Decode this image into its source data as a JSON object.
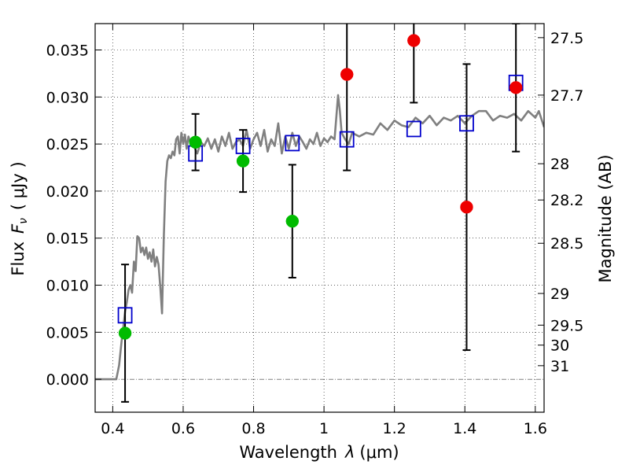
{
  "chart_data": {
    "type": "scatter",
    "xlabel": "Wavelength  λ (μm)",
    "ylabel": "Flux  F_ν  ( μJy )",
    "ylabel_parts": {
      "prefix": "Flux",
      "symbol": "F",
      "subscript": "ν",
      "unit": "( μJy )"
    },
    "xlabel_parts": {
      "prefix": "Wavelength",
      "symbol": "λ",
      "unit": "(μm)"
    },
    "y2label": "Magnitude (AB)",
    "xlim": [
      0.35,
      1.625
    ],
    "ylim": [
      -0.0035,
      0.0378
    ],
    "grid": true,
    "x_ticks": [
      {
        "value": 0.4,
        "label": "0.4"
      },
      {
        "value": 0.6,
        "label": "0.6"
      },
      {
        "value": 0.8,
        "label": "0.8"
      },
      {
        "value": 1.0,
        "label": "1"
      },
      {
        "value": 1.2,
        "label": "1.2"
      },
      {
        "value": 1.4,
        "label": "1.4"
      },
      {
        "value": 1.6,
        "label": "1.6"
      }
    ],
    "y_ticks": [
      {
        "value": 0.0,
        "label": "0.000"
      },
      {
        "value": 0.005,
        "label": "0.005"
      },
      {
        "value": 0.01,
        "label": "0.010"
      },
      {
        "value": 0.015,
        "label": "0.015"
      },
      {
        "value": 0.02,
        "label": "0.020"
      },
      {
        "value": 0.025,
        "label": "0.025"
      },
      {
        "value": 0.03,
        "label": "0.030"
      },
      {
        "value": 0.035,
        "label": "0.035"
      }
    ],
    "mag_ticks": [
      {
        "mag": 27.5,
        "label": "27.5"
      },
      {
        "mag": 27.7,
        "label": "27.7"
      },
      {
        "mag": 28.0,
        "label": "28"
      },
      {
        "mag": 28.2,
        "label": "28.2"
      },
      {
        "mag": 28.5,
        "label": "28.5"
      },
      {
        "mag": 29.0,
        "label": "29"
      },
      {
        "mag": 29.5,
        "label": "29.5"
      },
      {
        "mag": 30.0,
        "label": "30"
      },
      {
        "mag": 31.0,
        "label": "31"
      }
    ],
    "series": [
      {
        "style": "line",
        "color": "#808080",
        "x": [
          0.35,
          0.41,
          0.418,
          0.425,
          0.43,
          0.435,
          0.44,
          0.445,
          0.45,
          0.455,
          0.46,
          0.465,
          0.47,
          0.475,
          0.48,
          0.485,
          0.49,
          0.495,
          0.5,
          0.505,
          0.51,
          0.515,
          0.52,
          0.525,
          0.53,
          0.535,
          0.54,
          0.545,
          0.55,
          0.555,
          0.56,
          0.565,
          0.57,
          0.575,
          0.58,
          0.585,
          0.59,
          0.595,
          0.6,
          0.605,
          0.61,
          0.615,
          0.62,
          0.625,
          0.63,
          0.64,
          0.65,
          0.66,
          0.67,
          0.68,
          0.69,
          0.7,
          0.71,
          0.72,
          0.73,
          0.74,
          0.75,
          0.76,
          0.77,
          0.78,
          0.79,
          0.8,
          0.81,
          0.82,
          0.83,
          0.84,
          0.85,
          0.86,
          0.87,
          0.88,
          0.89,
          0.9,
          0.91,
          0.92,
          0.93,
          0.94,
          0.95,
          0.96,
          0.97,
          0.98,
          0.99,
          1.0,
          1.01,
          1.02,
          1.03,
          1.04,
          1.045,
          1.05,
          1.06,
          1.07,
          1.08,
          1.1,
          1.12,
          1.14,
          1.16,
          1.18,
          1.2,
          1.22,
          1.24,
          1.26,
          1.28,
          1.3,
          1.32,
          1.34,
          1.36,
          1.38,
          1.4,
          1.42,
          1.44,
          1.46,
          1.48,
          1.5,
          1.52,
          1.54,
          1.56,
          1.58,
          1.6,
          1.61,
          1.625
        ],
        "y": [
          0.0,
          0.0,
          0.0015,
          0.004,
          0.0055,
          0.0072,
          0.0082,
          0.0095,
          0.01,
          0.0092,
          0.0125,
          0.0115,
          0.0152,
          0.015,
          0.0135,
          0.014,
          0.0132,
          0.014,
          0.0128,
          0.0135,
          0.0125,
          0.0138,
          0.012,
          0.013,
          0.0122,
          0.0098,
          0.007,
          0.015,
          0.021,
          0.0232,
          0.0238,
          0.0235,
          0.0242,
          0.0238,
          0.0255,
          0.0258,
          0.024,
          0.0262,
          0.025,
          0.026,
          0.0245,
          0.0258,
          0.0252,
          0.0256,
          0.0248,
          0.024,
          0.0252,
          0.0248,
          0.0256,
          0.0245,
          0.0255,
          0.0242,
          0.0258,
          0.0248,
          0.0262,
          0.0245,
          0.0252,
          0.0255,
          0.0248,
          0.0265,
          0.0245,
          0.0255,
          0.0262,
          0.0248,
          0.0265,
          0.0242,
          0.0255,
          0.0248,
          0.0272,
          0.024,
          0.0258,
          0.0245,
          0.0262,
          0.0248,
          0.0258,
          0.0252,
          0.0245,
          0.0255,
          0.025,
          0.0262,
          0.0248,
          0.0256,
          0.0252,
          0.0258,
          0.0255,
          0.0302,
          0.0285,
          0.0262,
          0.0255,
          0.025,
          0.0262,
          0.0258,
          0.0262,
          0.026,
          0.0272,
          0.0265,
          0.0275,
          0.027,
          0.0268,
          0.0278,
          0.0272,
          0.028,
          0.027,
          0.0278,
          0.0275,
          0.028,
          0.0272,
          0.028,
          0.0285,
          0.0285,
          0.0275,
          0.028,
          0.0278,
          0.0282,
          0.0275,
          0.0285,
          0.0278,
          0.0285,
          0.0268
        ]
      },
      {
        "style": "open-square",
        "color": "#0000cc",
        "x": [
          0.435,
          0.635,
          0.77,
          0.91,
          1.065,
          1.255,
          1.405,
          1.545
        ],
        "y": [
          0.0068,
          0.024,
          0.0248,
          0.0251,
          0.0255,
          0.0266,
          0.0272,
          0.0315
        ]
      },
      {
        "style": "filled-circle",
        "color": "#00bb00",
        "x": [
          0.435,
          0.635,
          0.77,
          0.91
        ],
        "y": [
          0.0049,
          0.0252,
          0.0232,
          0.0168
        ],
        "err": [
          0.0073,
          0.003,
          0.0033,
          0.006
        ]
      },
      {
        "style": "filled-circle",
        "color": "#ee0000",
        "x": [
          1.065,
          1.255,
          1.405,
          1.545
        ],
        "y": [
          0.0324,
          0.036,
          0.0183,
          0.031
        ],
        "err": [
          0.0102,
          0.0066,
          0.0152,
          0.0068
        ]
      }
    ]
  }
}
